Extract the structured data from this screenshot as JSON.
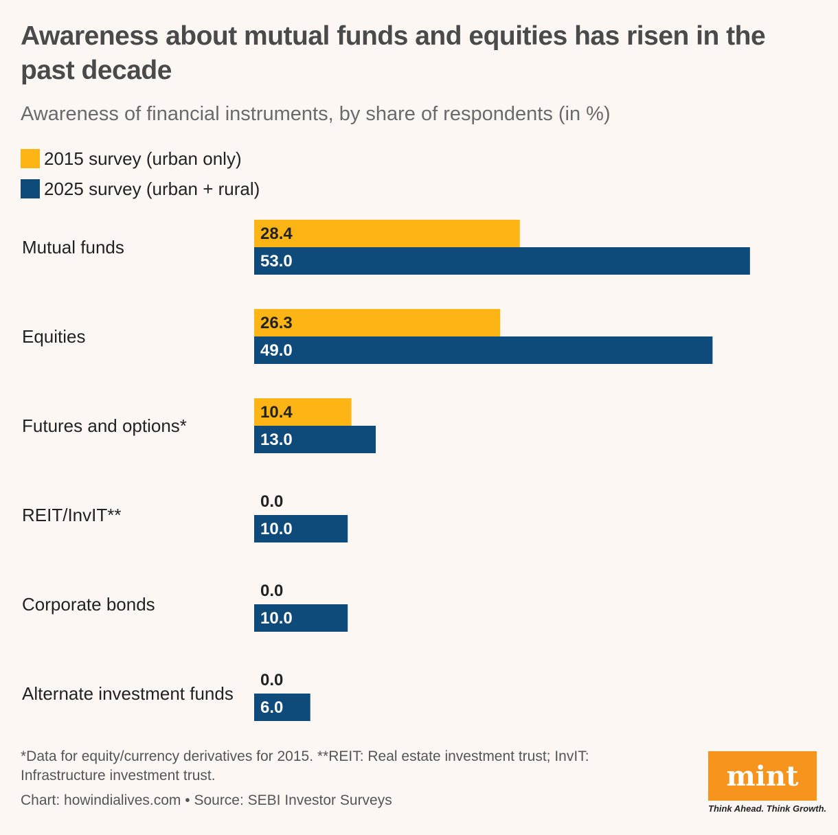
{
  "header": {
    "title": "Awareness about mutual funds and equities has risen in the past decade",
    "subtitle": "Awareness of financial instruments, by share of respondents (in %)"
  },
  "legend": {
    "items": [
      {
        "label": "2015 survey (urban only)",
        "color": "#fdb515"
      },
      {
        "label": "2025 survey (urban + rural)",
        "color": "#0e4a7a"
      }
    ]
  },
  "chart_data": {
    "type": "bar",
    "orientation": "horizontal",
    "categories": [
      "Mutual funds",
      "Equities",
      "Futures and options*",
      "REIT/InvIT**",
      "Corporate bonds",
      "Alternate investment funds"
    ],
    "series": [
      {
        "name": "2015 survey (urban only)",
        "color": "#fdb515",
        "values": [
          28.4,
          26.3,
          10.4,
          0.0,
          0.0,
          0.0
        ],
        "labels": [
          "28.4",
          "26.3",
          "10.4",
          "0.0",
          "0.0",
          "0.0"
        ]
      },
      {
        "name": "2025 survey (urban + rural)",
        "color": "#0e4a7a",
        "values": [
          53.0,
          49.0,
          13.0,
          10.0,
          10.0,
          6.0
        ],
        "labels": [
          "53.0",
          "49.0",
          "13.0",
          "10.0",
          "10.0",
          "6.0"
        ]
      }
    ],
    "xlim": [
      0,
      60
    ],
    "grid": false,
    "legend_position": "top-left"
  },
  "footer": {
    "footnote": "*Data for equity/currency derivatives for 2015. **REIT: Real estate investment trust; InvIT: Infrastructure investment trust.",
    "source": "Chart: howindialives.com • Source: SEBI Investor Surveys"
  },
  "logo": {
    "text": "mint",
    "tagline": "Think Ahead. Think Growth."
  }
}
